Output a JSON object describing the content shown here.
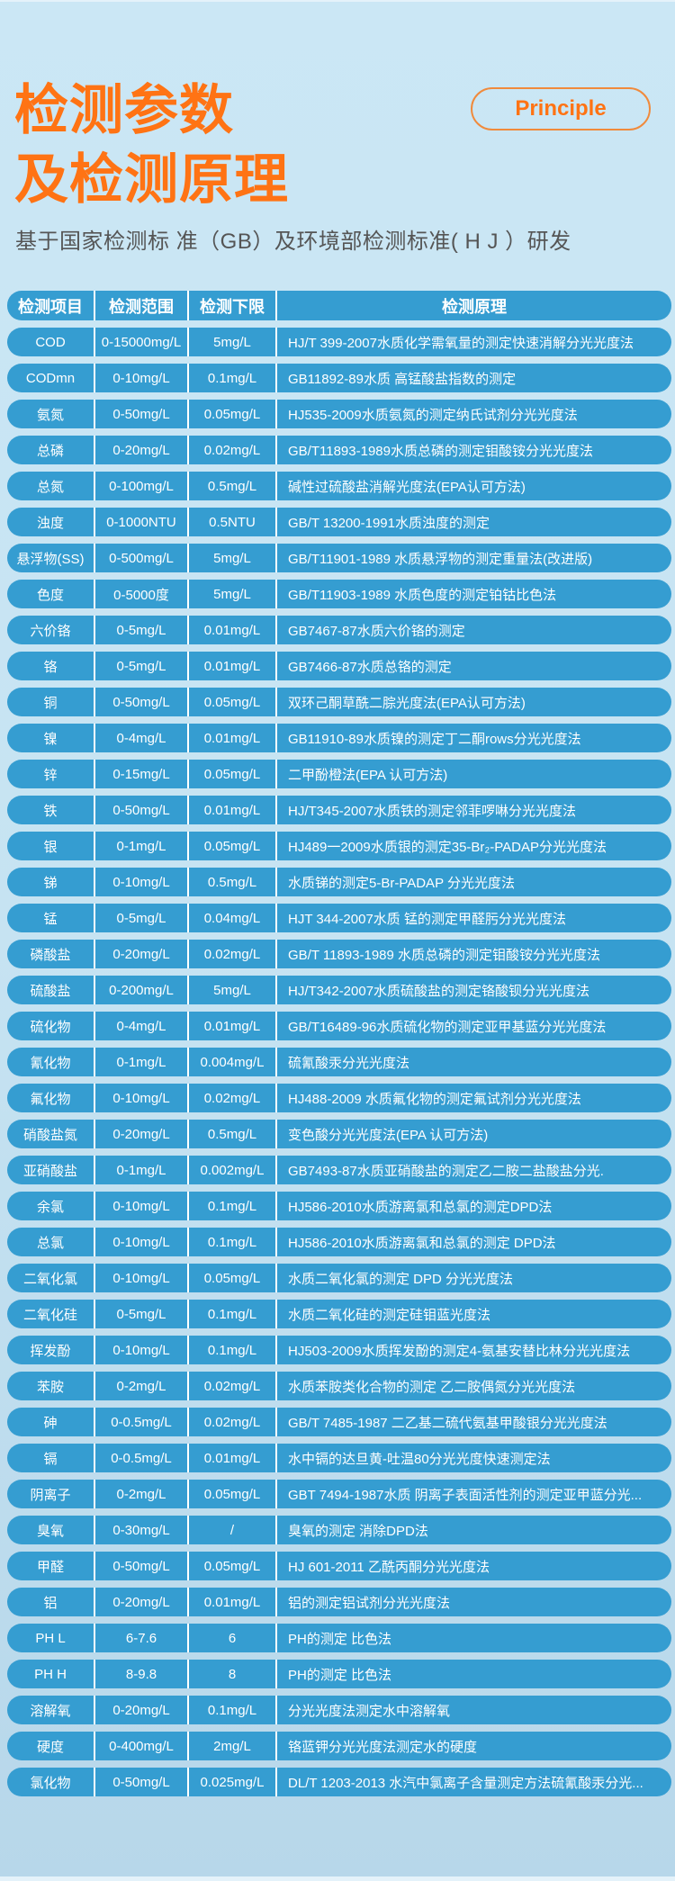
{
  "header": {
    "title_line1": "检测参数",
    "title_line2": "及检测原理",
    "badge": "Principle",
    "subtitle": "基于国家检测标 准（GB）及环境部检测标准( H J ）研发"
  },
  "colors": {
    "accent": "#ff7314",
    "row": "#359dd1",
    "background": "#cbe7f5"
  },
  "table": {
    "columns": [
      "检测项目",
      "检测范围",
      "检测下限",
      "检测原理"
    ],
    "rows": [
      [
        "COD",
        "0-15000mg/L",
        "5mg/L",
        "HJ/T 399-2007水质化学需氧量的测定快速消解分光光度法"
      ],
      [
        "CODmn",
        "0-10mg/L",
        "0.1mg/L",
        "GB11892-89水质 高锰酸盐指数的测定"
      ],
      [
        "氨氮",
        "0-50mg/L",
        "0.05mg/L",
        "HJ535-2009水质氨氮的测定纳氏试剂分光光度法"
      ],
      [
        "总磷",
        "0-20mg/L",
        "0.02mg/L",
        "GB/T11893-1989水质总磷的测定钼酸铵分光光度法"
      ],
      [
        "总氮",
        "0-100mg/L",
        "0.5mg/L",
        "碱性过硫酸盐消解光度法(EPA认可方法)"
      ],
      [
        "浊度",
        "0-1000NTU",
        "0.5NTU",
        "GB/T 13200-1991水质浊度的测定"
      ],
      [
        "悬浮物(SS)",
        "0-500mg/L",
        "5mg/L",
        "GB/T11901-1989 水质悬浮物的测定重量法(改进版)"
      ],
      [
        "色度",
        "0-5000度",
        "5mg/L",
        "GB/T11903-1989 水质色度的测定铂钴比色法"
      ],
      [
        "六价铬",
        "0-5mg/L",
        "0.01mg/L",
        "GB7467-87水质六价铬的测定"
      ],
      [
        "铬",
        "0-5mg/L",
        "0.01mg/L",
        "GB7466-87水质总铬的测定"
      ],
      [
        "铜",
        "0-50mg/L",
        "0.05mg/L",
        "双环己酮草酰二腙光度法(EPA认可方法)"
      ],
      [
        "镍",
        "0-4mg/L",
        "0.01mg/L",
        "GB11910-89水质镍的测定丁二酮rows分光光度法"
      ],
      [
        "锌",
        "0-15mg/L",
        "0.05mg/L",
        "二甲酚橙法(EPA 认可方法)"
      ],
      [
        "铁",
        "0-50mg/L",
        "0.01mg/L",
        "HJ/T345-2007水质铁的测定邻菲啰啉分光光度法"
      ],
      [
        "银",
        "0-1mg/L",
        "0.05mg/L",
        "HJ489一2009水质银的测定35-Br₂-PADAP分光光度法"
      ],
      [
        "锑",
        "0-10mg/L",
        "0.5mg/L",
        "水质锑的测定5-Br-PADAP 分光光度法"
      ],
      [
        "锰",
        "0-5mg/L",
        "0.04mg/L",
        "HJT 344-2007水质 锰的测定甲醛肟分光光度法"
      ],
      [
        "磷酸盐",
        "0-20mg/L",
        "0.02mg/L",
        "GB/T 11893-1989 水质总磷的测定钼酸铵分光光度法"
      ],
      [
        "硫酸盐",
        "0-200mg/L",
        "5mg/L",
        "HJ/T342-2007水质硫酸盐的测定铬酸钡分光光度法"
      ],
      [
        "硫化物",
        "0-4mg/L",
        "0.01mg/L",
        "GB/T16489-96水质硫化物的测定亚甲基蓝分光光度法"
      ],
      [
        "氰化物",
        "0-1mg/L",
        "0.004mg/L",
        "硫氰酸汞分光光度法"
      ],
      [
        "氟化物",
        "0-10mg/L",
        "0.02mg/L",
        "HJ488-2009 水质氟化物的测定氟试剂分光光度法"
      ],
      [
        "硝酸盐氮",
        "0-20mg/L",
        "0.5mg/L",
        "变色酸分光光度法(EPA 认可方法)"
      ],
      [
        "亚硝酸盐",
        "0-1mg/L",
        "0.002mg/L",
        "GB7493-87水质亚硝酸盐的测定乙二胺二盐酸盐分光."
      ],
      [
        "余氯",
        "0-10mg/L",
        "0.1mg/L",
        "HJ586-2010水质游离氯和总氯的测定DPD法"
      ],
      [
        "总氯",
        "0-10mg/L",
        "0.1mg/L",
        "HJ586-2010水质游离氯和总氯的测定 DPD法"
      ],
      [
        "二氧化氯",
        "0-10mg/L",
        "0.05mg/L",
        "水质二氧化氯的测定 DPD 分光光度法"
      ],
      [
        "二氧化硅",
        "0-5mg/L",
        "0.1mg/L",
        "水质二氧化硅的测定硅钼蓝光度法"
      ],
      [
        "挥发酚",
        "0-10mg/L",
        "0.1mg/L",
        "HJ503-2009水质挥发酚的测定4-氨基安替比林分光光度法"
      ],
      [
        "苯胺",
        "0-2mg/L",
        "0.02mg/L",
        "水质苯胺类化合物的测定 乙二胺偶氮分光光度法"
      ],
      [
        "砷",
        "0-0.5mg/L",
        "0.02mg/L",
        "GB/T 7485-1987  二乙基二硫代氨基甲酸银分光光度法"
      ],
      [
        "镉",
        "0-0.5mg/L",
        "0.01mg/L",
        "水中镉的达旦黄-吐温80分光光度快速测定法"
      ],
      [
        "阴离子",
        "0-2mg/L",
        "0.05mg/L",
        "GBT 7494-1987水质 阴离子表面活性剂的测定亚甲蓝分光..."
      ],
      [
        "臭氧",
        "0-30mg/L",
        "/",
        "臭氧的测定 消除DPD法"
      ],
      [
        "甲醛",
        "0-50mg/L",
        "0.05mg/L",
        "HJ 601-2011 乙酰丙酮分光光度法"
      ],
      [
        "铝",
        "0-20mg/L",
        "0.01mg/L",
        "铝的测定铝试剂分光光度法"
      ],
      [
        "PH L",
        "6-7.6",
        "6",
        "PH的测定 比色法"
      ],
      [
        "PH H",
        "8-9.8",
        "8",
        "PH的测定 比色法"
      ],
      [
        "溶解氧",
        "0-20mg/L",
        "0.1mg/L",
        "分光光度法测定水中溶解氧"
      ],
      [
        "硬度",
        "0-400mg/L",
        "2mg/L",
        "铬蓝钾分光光度法测定水的硬度"
      ],
      [
        "氯化物",
        "0-50mg/L",
        "0.025mg/L",
        "DL/T 1203-2013 水汽中氯离子含量测定方法硫氰酸汞分光..."
      ]
    ]
  }
}
